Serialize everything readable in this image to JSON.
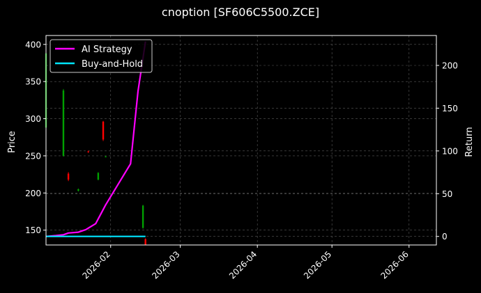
{
  "chart_data": {
    "type": "line",
    "title": "cnoption [SF606C5500.ZCE]",
    "xlabel": "",
    "ylabel": "Price",
    "y2label": "Return",
    "xlim": [
      "2026-01-06",
      "2026-06-12"
    ],
    "ylim": [
      130,
      412
    ],
    "y2lim": [
      -10,
      235
    ],
    "x_ticks": [
      "2026-02-01",
      "2026-03-01",
      "2026-04-01",
      "2026-05-01",
      "2026-06-01"
    ],
    "x_tick_labels": [
      "2026-02",
      "2026-03",
      "2026-04",
      "2026-05",
      "2026-06"
    ],
    "y_ticks": [
      150,
      200,
      250,
      300,
      350,
      400
    ],
    "y2_ticks": [
      0,
      50,
      100,
      150,
      200
    ],
    "grid": true,
    "legend_position": "top-left",
    "colors": {
      "background": "#000000",
      "axes": "#ffffff",
      "grid": "#5a5a5a",
      "up": "#00a000",
      "down": "#ff0000",
      "ai": "#ff00ff",
      "bh": "#00e5ff"
    },
    "candles": [
      {
        "date": "2026-01-06",
        "open": 288,
        "close": 388,
        "high": 390,
        "low": 285
      },
      {
        "date": "2026-01-13",
        "open": 250,
        "close": 338,
        "high": 340,
        "low": 249
      },
      {
        "date": "2026-01-15",
        "open": 226,
        "close": 218,
        "high": 228,
        "low": 216
      },
      {
        "date": "2026-01-19",
        "open": 203,
        "close": 205,
        "high": 206,
        "low": 202
      },
      {
        "date": "2026-01-23",
        "open": 256,
        "close": 255,
        "high": 257,
        "low": 254
      },
      {
        "date": "2026-01-27",
        "open": 218,
        "close": 227,
        "high": 228,
        "low": 217
      },
      {
        "date": "2026-01-29",
        "open": 296,
        "close": 272,
        "high": 297,
        "low": 270
      },
      {
        "date": "2026-01-30",
        "open": 249,
        "close": 249,
        "high": 250,
        "low": 248
      },
      {
        "date": "2026-02-14",
        "open": 153,
        "close": 183,
        "high": 184,
        "low": 152
      },
      {
        "date": "2026-02-15",
        "open": 138,
        "close": 130,
        "high": 139,
        "low": 130
      }
    ],
    "series": [
      {
        "name": "AI Strategy",
        "x": [
          "2026-01-06",
          "2026-01-10",
          "2026-01-13",
          "2026-01-15",
          "2026-01-19",
          "2026-01-22",
          "2026-01-26",
          "2026-01-30",
          "2026-02-09",
          "2026-02-12",
          "2026-02-15"
        ],
        "values": [
          0,
          1,
          2,
          4,
          5,
          8,
          15,
          37,
          85,
          170,
          228
        ]
      },
      {
        "name": "Buy-and-Hold",
        "x": [
          "2026-01-06",
          "2026-01-13",
          "2026-01-20",
          "2026-01-27",
          "2026-02-03",
          "2026-02-10",
          "2026-02-15"
        ],
        "values": [
          0,
          0,
          0,
          0,
          0,
          0,
          0
        ]
      }
    ]
  }
}
